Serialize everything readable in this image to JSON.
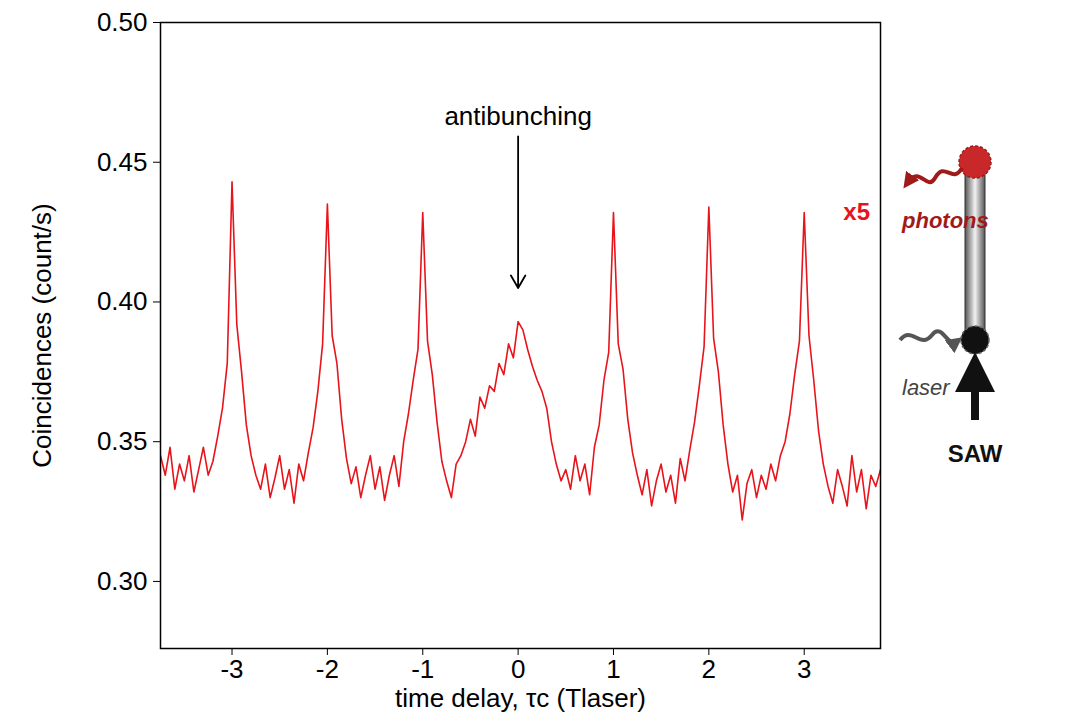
{
  "chart_data": {
    "type": "line",
    "title": null,
    "x_label": "time delay, τc (Tlaser)",
    "y_label": "Coincidences (count/s)",
    "xlim": [
      -3.75,
      3.8
    ],
    "xticks": [
      -3,
      -2,
      -1,
      0,
      1,
      2,
      3
    ],
    "ylim": [
      0.276,
      0.5
    ],
    "yticks": [
      {
        "value": 0.3,
        "label": "0.30"
      },
      0.35,
      {
        "value": 0.4,
        "label": "0.40"
      },
      0.45,
      {
        "value": 0.5,
        "label": "0.50"
      }
    ],
    "grid": false,
    "series": [
      {
        "name": "coincidences",
        "color": "#e8141b",
        "x": [
          -3.75,
          -3.7,
          -3.65,
          -3.6,
          -3.55,
          -3.5,
          -3.45,
          -3.4,
          -3.35,
          -3.3,
          -3.25,
          -3.2,
          -3.15,
          -3.1,
          -3.05,
          -3,
          -2.95,
          -2.9,
          -2.85,
          -2.8,
          -2.75,
          -2.7,
          -2.65,
          -2.6,
          -2.55,
          -2.5,
          -2.45,
          -2.4,
          -2.35,
          -2.3,
          -2.25,
          -2.2,
          -2.15,
          -2.1,
          -2.05,
          -2,
          -1.95,
          -1.9,
          -1.85,
          -1.8,
          -1.75,
          -1.7,
          -1.65,
          -1.6,
          -1.55,
          -1.5,
          -1.45,
          -1.4,
          -1.35,
          -1.3,
          -1.25,
          -1.2,
          -1.15,
          -1.1,
          -1.05,
          -1,
          -0.95,
          -0.9,
          -0.85,
          -0.8,
          -0.75,
          -0.7,
          -0.65,
          -0.6,
          -0.55,
          -0.5,
          -0.45,
          -0.4,
          -0.35,
          -0.3,
          -0.25,
          -0.2,
          -0.15,
          -0.1,
          -0.05,
          0,
          0.05,
          0.1,
          0.15,
          0.2,
          0.25,
          0.3,
          0.35,
          0.4,
          0.45,
          0.5,
          0.55,
          0.6,
          0.65,
          0.7,
          0.75,
          0.8,
          0.85,
          0.9,
          0.95,
          1,
          1.05,
          1.1,
          1.15,
          1.2,
          1.25,
          1.3,
          1.35,
          1.4,
          1.45,
          1.5,
          1.55,
          1.6,
          1.65,
          1.7,
          1.75,
          1.8,
          1.85,
          1.9,
          1.95,
          2,
          2.05,
          2.1,
          2.15,
          2.2,
          2.25,
          2.3,
          2.35,
          2.4,
          2.45,
          2.5,
          2.55,
          2.6,
          2.65,
          2.7,
          2.75,
          2.8,
          2.85,
          2.9,
          2.95,
          3,
          3.05,
          3.1,
          3.15,
          3.2,
          3.25,
          3.3,
          3.35,
          3.4,
          3.45,
          3.5,
          3.55,
          3.6,
          3.65,
          3.7,
          3.75,
          3.8
        ],
        "values": [
          0.345,
          0.338,
          0.348,
          0.333,
          0.342,
          0.336,
          0.345,
          0.332,
          0.34,
          0.348,
          0.338,
          0.343,
          0.352,
          0.362,
          0.378,
          0.443,
          0.392,
          0.375,
          0.356,
          0.345,
          0.338,
          0.333,
          0.342,
          0.33,
          0.337,
          0.345,
          0.333,
          0.34,
          0.328,
          0.342,
          0.336,
          0.346,
          0.355,
          0.368,
          0.385,
          0.435,
          0.388,
          0.378,
          0.358,
          0.344,
          0.335,
          0.341,
          0.33,
          0.338,
          0.345,
          0.333,
          0.341,
          0.329,
          0.338,
          0.345,
          0.334,
          0.35,
          0.36,
          0.372,
          0.383,
          0.432,
          0.386,
          0.374,
          0.357,
          0.343,
          0.336,
          0.33,
          0.342,
          0.345,
          0.35,
          0.358,
          0.352,
          0.366,
          0.362,
          0.37,
          0.368,
          0.378,
          0.374,
          0.385,
          0.38,
          0.393,
          0.39,
          0.383,
          0.377,
          0.372,
          0.368,
          0.362,
          0.35,
          0.342,
          0.336,
          0.34,
          0.333,
          0.345,
          0.336,
          0.342,
          0.331,
          0.348,
          0.356,
          0.372,
          0.382,
          0.432,
          0.385,
          0.376,
          0.358,
          0.346,
          0.338,
          0.331,
          0.34,
          0.327,
          0.336,
          0.342,
          0.332,
          0.338,
          0.328,
          0.344,
          0.336,
          0.347,
          0.357,
          0.37,
          0.384,
          0.434,
          0.387,
          0.375,
          0.356,
          0.342,
          0.332,
          0.338,
          0.322,
          0.335,
          0.34,
          0.33,
          0.338,
          0.333,
          0.342,
          0.336,
          0.345,
          0.35,
          0.36,
          0.374,
          0.386,
          0.432,
          0.388,
          0.372,
          0.354,
          0.342,
          0.334,
          0.328,
          0.34,
          0.334,
          0.327,
          0.345,
          0.332,
          0.34,
          0.326,
          0.338,
          0.334,
          0.34
        ]
      }
    ],
    "annotations": [
      {
        "text": "antibunching",
        "x": 0,
        "y": 0.465,
        "arrow_y": 0.405,
        "color": "#000000"
      },
      {
        "text": "x5",
        "x": 3.55,
        "y": 0.432,
        "color": "#e8141b"
      }
    ],
    "inset": {
      "photons": "photons",
      "laser": "laser",
      "drive": "SAW"
    }
  }
}
